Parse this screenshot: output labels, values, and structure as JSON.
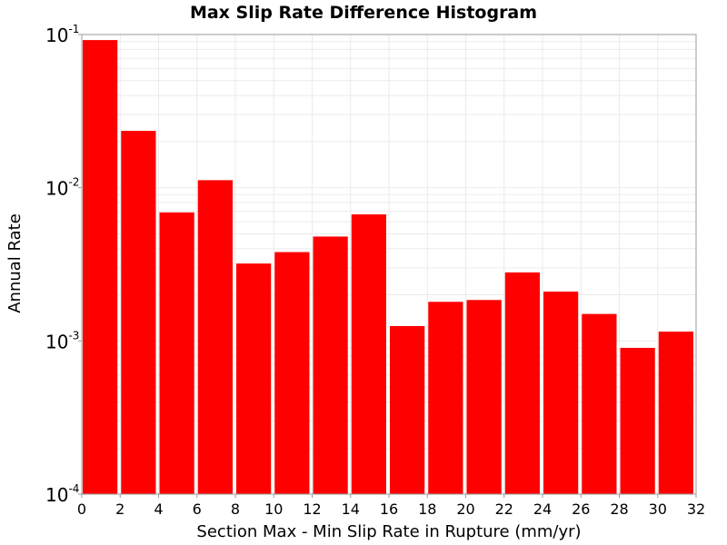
{
  "chart_data": {
    "type": "bar",
    "title": "Max Slip Rate Difference Histogram",
    "xlabel": "Section Max - Min Slip Rate in Rupture (mm/yr)",
    "ylabel": "Annual Rate",
    "xlim": [
      0,
      32
    ],
    "ylim": [
      0.0001,
      0.1
    ],
    "y_scale": "log",
    "bin_width": 2,
    "x_ticks": [
      0,
      2,
      4,
      6,
      8,
      10,
      12,
      14,
      16,
      18,
      20,
      22,
      24,
      26,
      28,
      30,
      32
    ],
    "y_ticks": [
      {
        "base": "10",
        "exp": "-1",
        "value": 0.1
      },
      {
        "base": "10",
        "exp": "-2",
        "value": 0.01
      },
      {
        "base": "10",
        "exp": "-3",
        "value": 0.001
      },
      {
        "base": "10",
        "exp": "-4",
        "value": 0.0001
      }
    ],
    "bins": [
      {
        "x": 1,
        "value": 0.092
      },
      {
        "x": 3,
        "value": 0.0235
      },
      {
        "x": 5,
        "value": 0.0069
      },
      {
        "x": 7,
        "value": 0.0112
      },
      {
        "x": 9,
        "value": 0.0032
      },
      {
        "x": 11,
        "value": 0.0038
      },
      {
        "x": 13,
        "value": 0.0048
      },
      {
        "x": 15,
        "value": 0.0067
      },
      {
        "x": 17,
        "value": 0.00125
      },
      {
        "x": 19,
        "value": 0.0018
      },
      {
        "x": 21,
        "value": 0.00185
      },
      {
        "x": 23,
        "value": 0.0028
      },
      {
        "x": 25,
        "value": 0.0021
      },
      {
        "x": 27,
        "value": 0.0015
      },
      {
        "x": 29,
        "value": 0.0009
      },
      {
        "x": 31,
        "value": 0.00115
      }
    ],
    "bar_color": "#ff0000",
    "grid": true,
    "grid_color": "#ebebeb",
    "legend": "none"
  }
}
